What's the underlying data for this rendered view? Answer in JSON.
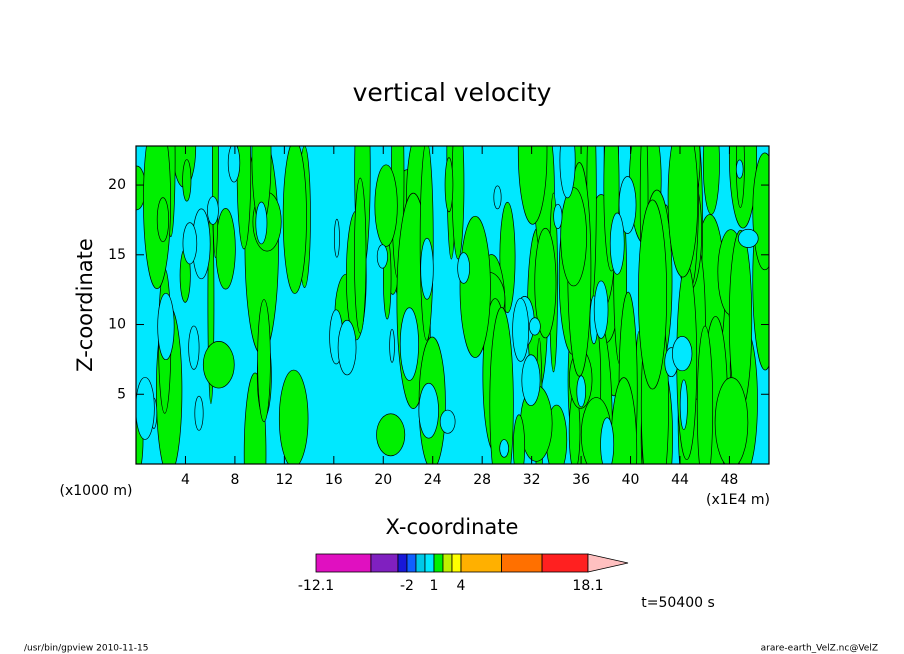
{
  "chart_data": {
    "type": "contour",
    "title": "vertical velocity",
    "x_label": "X-coordinate",
    "y_label": "Z-coordinate",
    "x_unit": "(x1E4 m)",
    "y_unit": "(x1000 m)",
    "xlim": [
      0,
      51.2
    ],
    "xticks": [
      4,
      8,
      12,
      16,
      20,
      24,
      28,
      32,
      36,
      40,
      44,
      48
    ],
    "ylim": [
      0,
      22.8
    ],
    "yticks": [
      5,
      10,
      15,
      20
    ],
    "colorbar": {
      "levels": [
        -12.1,
        -6,
        -3,
        -2,
        -1,
        0,
        1,
        2,
        3,
        4,
        8.5,
        13,
        18.1
      ],
      "colors": [
        "#e010c0",
        "#8020c0",
        "#1818d8",
        "#1060ff",
        "#00c8e8",
        "#00e8ff",
        "#00f000",
        "#c0f000",
        "#ffff00",
        "#ffb000",
        "#ff7000",
        "#ff2020",
        "#ff8080"
      ],
      "extend_color": "#ffc0c0",
      "ticks": [
        -12.1,
        -2,
        1,
        4,
        18.1
      ]
    },
    "time_label": "t=50400 s",
    "footer_left": "/usr/bin/gpview   2010-11-15",
    "footer_right": "arare-earth_VelZ.nc@VelZ"
  }
}
